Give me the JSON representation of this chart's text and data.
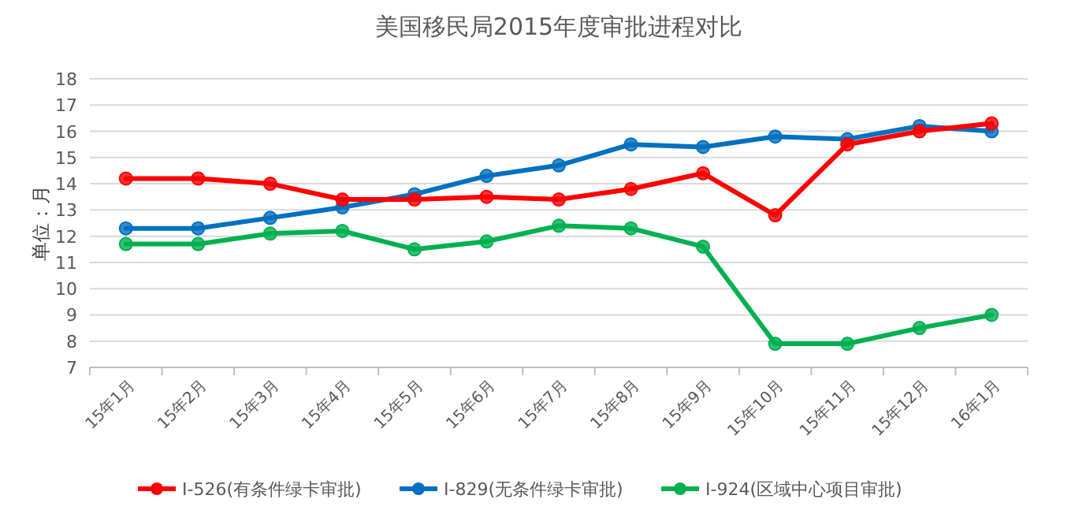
{
  "chart_data": {
    "type": "line",
    "title": "美国移民局2015年度审批进程对比",
    "ylabel": "单位：月",
    "categories": [
      "15年1月",
      "15年2月",
      "15年3月",
      "15年4月",
      "15年5月",
      "15年6月",
      "15年7月",
      "15年8月",
      "15年9月",
      "15年10月",
      "15年11月",
      "15年12月",
      "16年1月"
    ],
    "series": [
      {
        "name": "I-526(有条件绿卡审批)",
        "color": "#ff0000",
        "values": [
          14.2,
          14.2,
          14.0,
          13.4,
          13.4,
          13.5,
          13.4,
          13.8,
          14.4,
          12.8,
          15.5,
          16.0,
          16.3
        ]
      },
      {
        "name": "I-829(无条件绿卡审批)",
        "color": "#0070c0",
        "values": [
          12.3,
          12.3,
          12.7,
          13.1,
          13.6,
          14.3,
          14.7,
          15.5,
          15.4,
          15.8,
          15.7,
          16.2,
          16.0
        ]
      },
      {
        "name": "I-924(区域中心项目审批)",
        "color": "#00b050",
        "values": [
          11.7,
          11.7,
          12.1,
          12.2,
          11.5,
          11.8,
          12.4,
          12.3,
          11.6,
          7.9,
          7.9,
          8.5,
          9.0
        ]
      }
    ],
    "ylim": [
      7,
      18
    ],
    "yticks": [
      7,
      8,
      9,
      10,
      11,
      12,
      13,
      14,
      15,
      16,
      17,
      18
    ],
    "grid": "y",
    "legend": "bottom",
    "marker": "circle",
    "line_style": "solid"
  }
}
